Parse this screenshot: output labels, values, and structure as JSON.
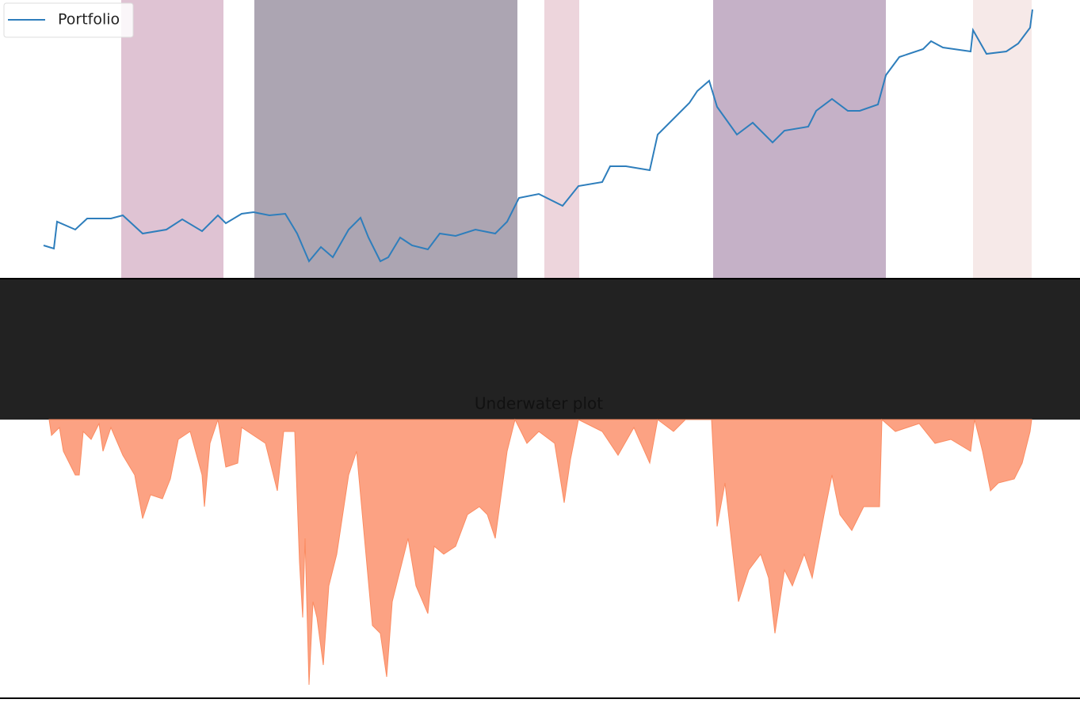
{
  "chart_data": [
    {
      "type": "line",
      "legend": "upper left",
      "xlim": [
        0,
        1363
      ],
      "ylim": [
        0,
        352
      ],
      "regions": [
        {
          "start": 153,
          "end": 282,
          "color": "#dfc3d3"
        },
        {
          "start": 321,
          "end": 653,
          "color": "#aca5b2"
        },
        {
          "start": 687,
          "end": 731,
          "color": "#edd5dc"
        },
        {
          "start": 900,
          "end": 1118,
          "color": "#c5b1c7"
        },
        {
          "start": 1228,
          "end": 1302,
          "color": "#f6e9e8"
        }
      ],
      "x": [
        55,
        68,
        72,
        95,
        110,
        140,
        155,
        180,
        210,
        230,
        255,
        275,
        285,
        305,
        320,
        340,
        360,
        375,
        390,
        405,
        420,
        440,
        455,
        465,
        480,
        490,
        505,
        520,
        540,
        555,
        575,
        600,
        625,
        640,
        655,
        680,
        710,
        730,
        760,
        770,
        790,
        820,
        830,
        850,
        870,
        880,
        895,
        905,
        930,
        950,
        975,
        990,
        1020,
        1030,
        1050,
        1070,
        1085,
        1108,
        1118,
        1135,
        1165,
        1175,
        1190,
        1225,
        1228,
        1245,
        1270,
        1285,
        1300,
        1303
      ],
      "series": [
        {
          "name": "Portfolio",
          "color": "#2e7ebc",
          "values": [
            42,
            38,
            72,
            62,
            76,
            76,
            80,
            57,
            62,
            75,
            60,
            80,
            70,
            82,
            84,
            80,
            82,
            57,
            22,
            40,
            27,
            62,
            77,
            52,
            22,
            27,
            52,
            42,
            37,
            57,
            54,
            62,
            57,
            72,
            102,
            107,
            92,
            117,
            122,
            142,
            142,
            137,
            182,
            202,
            222,
            237,
            250,
            217,
            182,
            197,
            172,
            187,
            192,
            212,
            227,
            212,
            212,
            220,
            257,
            280,
            290,
            300,
            292,
            287,
            314,
            284,
            287,
            297,
            317,
            340
          ]
        }
      ]
    },
    {
      "type": "area",
      "title": "Underwater plot",
      "xlim": [
        0,
        1363
      ],
      "ylim": [
        -350,
        0
      ],
      "x": [
        62,
        65,
        75,
        80,
        95,
        100,
        105,
        115,
        125,
        130,
        140,
        155,
        170,
        180,
        190,
        205,
        215,
        225,
        240,
        255,
        258,
        265,
        275,
        285,
        300,
        305,
        320,
        335,
        350,
        358,
        372,
        378,
        382,
        385,
        390,
        395,
        400,
        408,
        415,
        425,
        440,
        450,
        460,
        470,
        480,
        488,
        495,
        505,
        515,
        525,
        540,
        548,
        560,
        575,
        590,
        605,
        615,
        625,
        640,
        650,
        665,
        680,
        700,
        712,
        720,
        730,
        760,
        780,
        800,
        820,
        830,
        850,
        865,
        898,
        905,
        915,
        925,
        932,
        945,
        960,
        970,
        978,
        990,
        1000,
        1015,
        1025,
        1040,
        1050,
        1060,
        1075,
        1090,
        1110,
        1113,
        1130,
        1160,
        1180,
        1200,
        1225,
        1230,
        1240,
        1250,
        1260,
        1280,
        1290,
        1300,
        1302
      ],
      "series": [
        {
          "color": "#fca283",
          "values": [
            0,
            -20,
            -10,
            -40,
            -70,
            -70,
            -15,
            -25,
            -5,
            -40,
            -10,
            -45,
            -70,
            -125,
            -95,
            -100,
            -75,
            -25,
            -15,
            -70,
            -110,
            -30,
            0,
            -60,
            -55,
            -10,
            -20,
            -30,
            -90,
            -15,
            -15,
            -180,
            -250,
            -150,
            -335,
            -230,
            -250,
            -310,
            -210,
            -170,
            -70,
            -40,
            -150,
            -260,
            -270,
            -325,
            -230,
            -190,
            -150,
            -210,
            -245,
            -160,
            -170,
            -160,
            -120,
            -110,
            -120,
            -150,
            -40,
            0,
            -30,
            -15,
            -30,
            -105,
            -50,
            0,
            -15,
            -45,
            -10,
            -55,
            0,
            -15,
            0,
            0,
            -135,
            -80,
            -170,
            -230,
            -190,
            -170,
            -200,
            -270,
            -190,
            -210,
            -170,
            -200,
            -120,
            -70,
            -120,
            -140,
            -110,
            -110,
            0,
            -15,
            -5,
            -30,
            -25,
            -40,
            0,
            -40,
            -90,
            -80,
            -75,
            -55,
            -15,
            0
          ]
        }
      ]
    }
  ]
}
